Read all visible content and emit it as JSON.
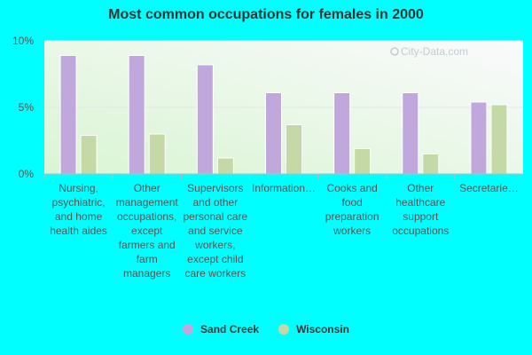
{
  "chart_data": {
    "type": "bar",
    "title": "Most common occupations for females in 2000",
    "categories": [
      "Nursing, psychiatric, and home health aides",
      "Other management occupations, except farmers and farm managers",
      "Supervisors and other personal care and service workers, except child care workers",
      "Information…",
      "Cooks and food preparation workers",
      "Other healthcare support occupations",
      "Secretarie…"
    ],
    "series": [
      {
        "name": "Sand Creek",
        "color": "#c0a8dc",
        "values": [
          8.9,
          8.9,
          8.2,
          6.1,
          6.1,
          6.1,
          5.4
        ]
      },
      {
        "name": "Wisconsin",
        "color": "#c4d9a5",
        "values": [
          2.9,
          3.0,
          1.2,
          3.7,
          1.9,
          1.5,
          5.2
        ]
      }
    ],
    "ylim": [
      0,
      10
    ],
    "yticks": [
      0,
      5,
      10
    ],
    "ytick_labels": [
      "0%",
      "5%",
      "10%"
    ],
    "xlabel": "",
    "ylabel": "",
    "grid": true,
    "legend_position": "bottom",
    "watermark": "City-Data.com"
  }
}
